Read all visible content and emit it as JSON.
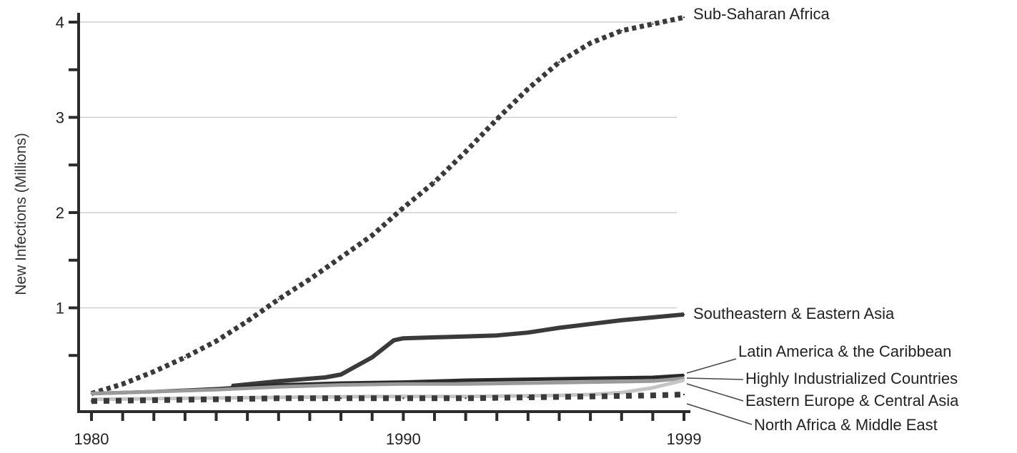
{
  "chart_data": {
    "type": "line",
    "title": "",
    "xlabel": "",
    "ylabel": "New Infections (Millions)",
    "xlim": [
      1980,
      1999
    ],
    "ylim": [
      0,
      4.15
    ],
    "x_ticks": [
      "1980",
      "1990",
      "1999"
    ],
    "y_ticks": [
      "1",
      "2",
      "3",
      "4"
    ],
    "grid": "horizontal",
    "legend": "direct labels at right end of lines",
    "series": [
      {
        "name": "Sub-Saharan Africa",
        "style": "dotted",
        "color": "#3a3a3a",
        "x": [
          1980,
          1981,
          1982,
          1983,
          1984,
          1985,
          1986,
          1987,
          1988,
          1989,
          1990,
          1991,
          1992,
          1993,
          1994,
          1995,
          1996,
          1997,
          1998,
          1999
        ],
        "values": [
          0.1,
          0.2,
          0.33,
          0.48,
          0.65,
          0.86,
          1.09,
          1.3,
          1.53,
          1.76,
          2.05,
          2.32,
          2.64,
          2.98,
          3.3,
          3.58,
          3.78,
          3.91,
          3.98,
          4.05
        ]
      },
      {
        "name": "Southeastern & Eastern Asia",
        "style": "solid",
        "color": "#3a3a3a",
        "x": [
          1984.5,
          1986,
          1987.5,
          1988,
          1989,
          1989.7,
          1990,
          1991,
          1992,
          1993,
          1994,
          1995,
          1996,
          1997,
          1998,
          1999
        ],
        "values": [
          0.18,
          0.23,
          0.27,
          0.3,
          0.48,
          0.66,
          0.68,
          0.69,
          0.7,
          0.71,
          0.74,
          0.79,
          0.83,
          0.87,
          0.9,
          0.93
        ]
      },
      {
        "name": "Latin America & the Caribbean",
        "style": "solid",
        "color": "#2a2a2a",
        "x": [
          1980,
          1982,
          1984,
          1986,
          1988,
          1990,
          1992,
          1994,
          1996,
          1998,
          1999
        ],
        "values": [
          0.1,
          0.12,
          0.15,
          0.19,
          0.21,
          0.22,
          0.24,
          0.25,
          0.26,
          0.27,
          0.29
        ]
      },
      {
        "name": "Highly Industrialized Countries",
        "style": "solid",
        "color": "#9a9a9a",
        "x": [
          1980,
          1982,
          1984,
          1986,
          1988,
          1990,
          1992,
          1994,
          1996,
          1998,
          1999
        ],
        "values": [
          0.1,
          0.12,
          0.14,
          0.17,
          0.19,
          0.2,
          0.2,
          0.21,
          0.22,
          0.23,
          0.26
        ]
      },
      {
        "name": "Eastern Europe & Central Asia",
        "style": "solid",
        "color": "#c4c4c4",
        "x": [
          1980,
          1983,
          1986,
          1989,
          1992,
          1995,
          1996,
          1997,
          1998,
          1999
        ],
        "values": [
          0.04,
          0.05,
          0.06,
          0.07,
          0.07,
          0.08,
          0.09,
          0.11,
          0.16,
          0.24
        ]
      },
      {
        "name": "North Africa & Middle East",
        "style": "dashed-square",
        "color": "#3a3a3a",
        "x": [
          1980,
          1982,
          1984,
          1986,
          1988,
          1990,
          1992,
          1994,
          1996,
          1998,
          1999
        ],
        "values": [
          0.02,
          0.03,
          0.04,
          0.05,
          0.05,
          0.05,
          0.05,
          0.06,
          0.07,
          0.08,
          0.09
        ]
      }
    ]
  }
}
